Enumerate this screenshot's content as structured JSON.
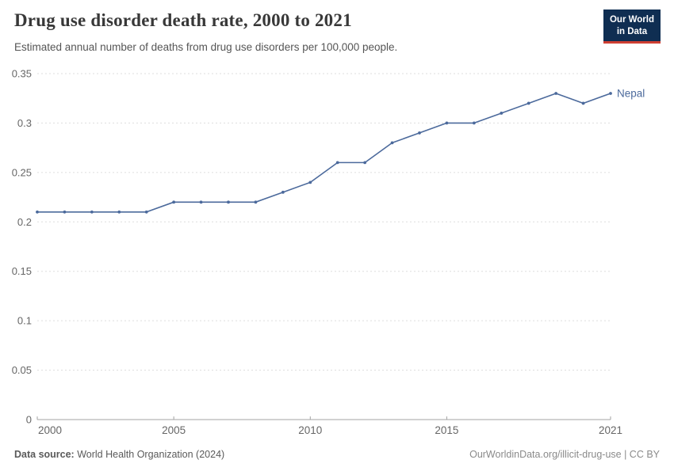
{
  "header": {
    "title": "Drug use disorder death rate, 2000 to 2021",
    "subtitle": "Estimated annual number of deaths from drug use disorders per 100,000 people.",
    "logo": {
      "line1": "Our World",
      "line2": "in Data"
    }
  },
  "chart_data": {
    "type": "line",
    "title": "Drug use disorder death rate, 2000 to 2021",
    "xlabel": "",
    "ylabel": "",
    "x": [
      2000,
      2001,
      2002,
      2003,
      2004,
      2005,
      2006,
      2007,
      2008,
      2009,
      2010,
      2011,
      2012,
      2013,
      2014,
      2015,
      2016,
      2017,
      2018,
      2019,
      2020,
      2021
    ],
    "series": [
      {
        "name": "Nepal",
        "color": "#4c6a9c",
        "values": [
          0.21,
          0.21,
          0.21,
          0.21,
          0.21,
          0.22,
          0.22,
          0.22,
          0.22,
          0.23,
          0.24,
          0.26,
          0.26,
          0.28,
          0.29,
          0.3,
          0.3,
          0.31,
          0.32,
          0.33,
          0.32,
          0.33
        ]
      }
    ],
    "ylim": [
      0,
      0.35
    ],
    "yticks": [
      0,
      0.05,
      0.1,
      0.15,
      0.2,
      0.25,
      0.3,
      0.35
    ],
    "xticks": [
      2000,
      2005,
      2010,
      2015,
      2021
    ],
    "grid": "horizontal-dashed",
    "legend": "line-end-label"
  },
  "footer": {
    "source_label": "Data source:",
    "source_value": " World Health Organization (2024)",
    "license": "OurWorldinData.org/illicit-drug-use | CC BY"
  },
  "colors": {
    "line": "#4c6a9c",
    "grid": "#dddddd",
    "axis": "#a3a3a3",
    "tick_label": "#666666",
    "title": "#383838",
    "subtitle": "#555555",
    "footer_left": "#5a5a5a",
    "footer_right": "#8a8a8a",
    "logo_bg": "#0f2e52",
    "logo_red": "#cf3f32"
  }
}
